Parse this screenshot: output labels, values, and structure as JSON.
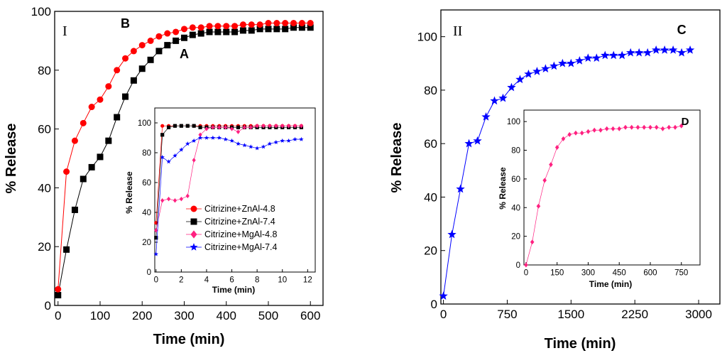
{
  "chart_data": [
    {
      "type": "line",
      "title": "",
      "panel_label": "I",
      "xlabel": "Time (min)",
      "ylabel": "% Release",
      "xlim": [
        -8,
        630
      ],
      "ylim": [
        0,
        100
      ],
      "xticks": [
        0,
        100,
        200,
        300,
        400,
        500,
        600
      ],
      "yticks": [
        0,
        20,
        40,
        60,
        80,
        100
      ],
      "series": [
        {
          "name": "A",
          "label": "A",
          "label_x": 300,
          "label_y": 84,
          "color": "#000000",
          "marker": "square",
          "x": [
            0,
            20,
            40,
            60,
            80,
            100,
            120,
            140,
            160,
            180,
            200,
            220,
            240,
            260,
            280,
            300,
            320,
            340,
            360,
            380,
            400,
            420,
            440,
            460,
            480,
            500,
            520,
            540,
            560,
            580,
            600
          ],
          "y": [
            3.5,
            19,
            32.5,
            43,
            47,
            50.5,
            56,
            64,
            71,
            76.5,
            80.5,
            83.5,
            86.5,
            88.5,
            90,
            91,
            92,
            92.5,
            93,
            93,
            93,
            93,
            93.5,
            93.5,
            94,
            94,
            94,
            94,
            94.5,
            94.5,
            94.5
          ]
        },
        {
          "name": "B",
          "label": "B",
          "label_x": 160,
          "label_y": 94.5,
          "color": "#ff0000",
          "marker": "circle",
          "x": [
            0,
            20,
            40,
            60,
            80,
            100,
            120,
            140,
            160,
            180,
            200,
            220,
            240,
            260,
            280,
            300,
            320,
            340,
            360,
            380,
            400,
            420,
            440,
            460,
            480,
            500,
            520,
            540,
            560,
            580,
            600
          ],
          "y": [
            5.5,
            45.5,
            56,
            62,
            67.5,
            70,
            74.5,
            80,
            84,
            86.5,
            88.5,
            90,
            91.5,
            92.5,
            93,
            94,
            94.5,
            94.5,
            95,
            95,
            95,
            95,
            95.5,
            95.5,
            95.5,
            96,
            96,
            96,
            96,
            96,
            96
          ]
        }
      ],
      "inset": {
        "type": "line",
        "xlabel": "Time (min)",
        "ylabel": "% Release",
        "xlim": [
          -0.1,
          12.6
        ],
        "ylim": [
          0,
          110
        ],
        "xticks": [
          0,
          2,
          4,
          6,
          8,
          10,
          12
        ],
        "yticks": [
          0,
          20,
          40,
          60,
          80,
          100
        ],
        "legend_position": "bottom-center",
        "series": [
          {
            "name": "Citrizine+ZnAl-4.8",
            "color": "#ff0000",
            "marker": "circle",
            "x": [
              0,
              0.5,
              1,
              1.5,
              2,
              2.5,
              3,
              3.5,
              4,
              4.5,
              5,
              5.5,
              6,
              6.5,
              7,
              7.5,
              8,
              8.5,
              9,
              9.5,
              10,
              10.5,
              11,
              11.5
            ],
            "y": [
              33,
              98,
              98,
              98,
              98,
              98,
              98,
              98,
              98,
              98,
              98,
              98,
              98,
              98,
              98,
              98,
              98,
              98,
              98,
              98,
              98,
              98,
              98,
              98
            ]
          },
          {
            "name": "Citrizine+ZnAl-7.4",
            "color": "#000000",
            "marker": "square",
            "x": [
              0,
              0.5,
              1,
              1.5,
              2,
              2.5,
              3,
              3.5,
              4,
              4.5,
              5,
              5.5,
              6,
              6.5,
              7,
              7.5,
              8,
              8.5,
              9,
              9.5,
              10,
              10.5,
              11,
              11.5
            ],
            "y": [
              23,
              92,
              97,
              98,
              98,
              98,
              98,
              97,
              97,
              97,
              97,
              97,
              97,
              97,
              97,
              97,
              97,
              97,
              97,
              97,
              97,
              97,
              97,
              97
            ]
          },
          {
            "name": "Citrizine+MgAl-4.8",
            "color": "#ff2080",
            "marker": "diamond",
            "x": [
              0,
              0.5,
              1,
              1.5,
              2,
              2.5,
              3,
              3.5,
              4,
              4.5,
              5,
              5.5,
              6,
              6.5,
              7,
              7.5,
              8,
              8.5,
              9,
              9.5,
              10,
              10.5,
              11,
              11.5
            ],
            "y": [
              28,
              48,
              49,
              48,
              49,
              51,
              75,
              92,
              96,
              97,
              97,
              97,
              96,
              94,
              97,
              97,
              98,
              98,
              98,
              98,
              98,
              98,
              98,
              98
            ]
          },
          {
            "name": "Citrizine+MgAl-7.4",
            "color": "#0000ff",
            "marker": "star",
            "x": [
              0,
              0.5,
              1,
              1.5,
              2,
              2.5,
              3,
              3.5,
              4,
              4.5,
              5,
              5.5,
              6,
              6.5,
              7,
              7.5,
              8,
              8.5,
              9,
              9.5,
              10,
              10.5,
              11,
              11.5
            ],
            "y": [
              12,
              77,
              74,
              78,
              82,
              86,
              88,
              90,
              90,
              90,
              90,
              89,
              88,
              86,
              85,
              84,
              83,
              84,
              86,
              87,
              88,
              88,
              89,
              89
            ]
          }
        ]
      }
    },
    {
      "type": "line",
      "title": "",
      "panel_label": "II",
      "xlabel": "Time (min)",
      "ylabel": "% Release",
      "xlim": [
        -30,
        3250
      ],
      "ylim": [
        0,
        110
      ],
      "xticks": [
        0,
        750,
        1500,
        2250,
        3000
      ],
      "yticks": [
        0,
        20,
        40,
        60,
        80,
        100
      ],
      "series": [
        {
          "name": "C",
          "label": "C",
          "label_x": 2800,
          "label_y": 101,
          "color": "#0000ff",
          "marker": "star",
          "x": [
            0,
            100,
            200,
            300,
            400,
            500,
            600,
            700,
            800,
            900,
            1000,
            1100,
            1200,
            1300,
            1400,
            1500,
            1600,
            1700,
            1800,
            1900,
            2000,
            2100,
            2200,
            2300,
            2400,
            2500,
            2600,
            2700,
            2800,
            2900
          ],
          "y": [
            3,
            26,
            43,
            60,
            61,
            70,
            76,
            77,
            81,
            84,
            86,
            87,
            88,
            89,
            90,
            90,
            91,
            92,
            92,
            93,
            93,
            93,
            94,
            94,
            94,
            95,
            95,
            95,
            94,
            95
          ]
        }
      ],
      "inset": {
        "type": "line",
        "label": "D",
        "xlabel": "Time (min)",
        "ylabel": "% Release",
        "xlim": [
          -10,
          840
        ],
        "ylim": [
          0,
          108
        ],
        "xticks": [
          0,
          150,
          300,
          450,
          600,
          750
        ],
        "yticks": [
          0,
          20,
          40,
          60,
          80,
          100
        ],
        "series": [
          {
            "name": "D",
            "color": "#ff2080",
            "marker": "diamond",
            "x": [
              0,
              30,
              60,
              90,
              120,
              150,
              180,
              210,
              240,
              270,
              300,
              330,
              360,
              390,
              420,
              450,
              480,
              510,
              540,
              570,
              600,
              630,
              660,
              690,
              720,
              750
            ],
            "y": [
              0,
              16,
              41,
              59,
              70,
              82,
              88,
              91,
              92,
              92,
              93,
              94,
              94,
              95,
              95,
              95,
              96,
              96,
              96,
              96,
              96,
              96,
              95,
              96,
              96,
              97
            ]
          }
        ]
      }
    }
  ]
}
